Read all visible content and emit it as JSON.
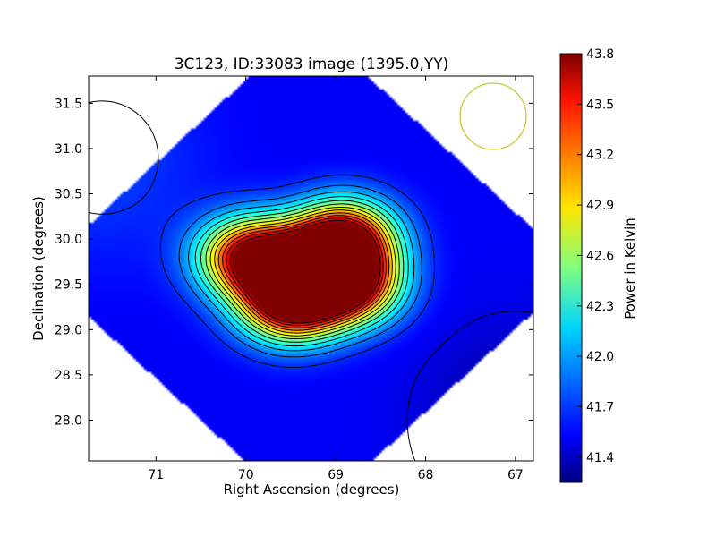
{
  "chart_data": {
    "type": "heatmap",
    "title": "3C123, ID:33083 image (1395.0,YY)",
    "xlabel": "Right Ascension (degrees)",
    "ylabel": "Declination (degrees)",
    "xlim": [
      71.75,
      66.8
    ],
    "ylim": [
      27.55,
      31.8
    ],
    "x_reversed": true,
    "xticks": [
      71,
      70,
      69,
      68,
      67
    ],
    "xtick_labels": [
      "71",
      "70",
      "69",
      "68",
      "67"
    ],
    "yticks": [
      28.0,
      28.5,
      29.0,
      29.5,
      30.0,
      30.5,
      31.0,
      31.5
    ],
    "ytick_labels": [
      "28.0",
      "28.5",
      "29.0",
      "29.5",
      "30.0",
      "30.5",
      "31.0",
      "31.5"
    ],
    "colormap": "jet",
    "colorbar": {
      "label": "Power in Kelvin",
      "range": [
        41.25,
        43.8
      ],
      "ticks": [
        41.4,
        41.7,
        42.0,
        42.3,
        42.6,
        42.9,
        43.2,
        43.5,
        43.8
      ],
      "tick_labels": [
        "41.4",
        "41.7",
        "42.0",
        "42.3",
        "42.6",
        "42.9",
        "43.2",
        "43.5",
        "43.8"
      ]
    },
    "background_level": 41.55,
    "components": [
      {
        "ra": 69.95,
        "dec": 29.8,
        "peak": 43.7
      },
      {
        "ra": 69.5,
        "dec": 29.3,
        "peak": 43.8
      },
      {
        "ra": 68.9,
        "dec": 30.0,
        "peak": 43.7
      },
      {
        "ra": 68.85,
        "dec": 29.5,
        "peak": 43.6
      },
      {
        "ra": 69.3,
        "dec": 29.7,
        "peak": 43.3
      }
    ],
    "contours": true,
    "beam_marker": {
      "ra": 67.25,
      "dec": 31.35,
      "color": "#c8c832"
    },
    "grid": false
  }
}
